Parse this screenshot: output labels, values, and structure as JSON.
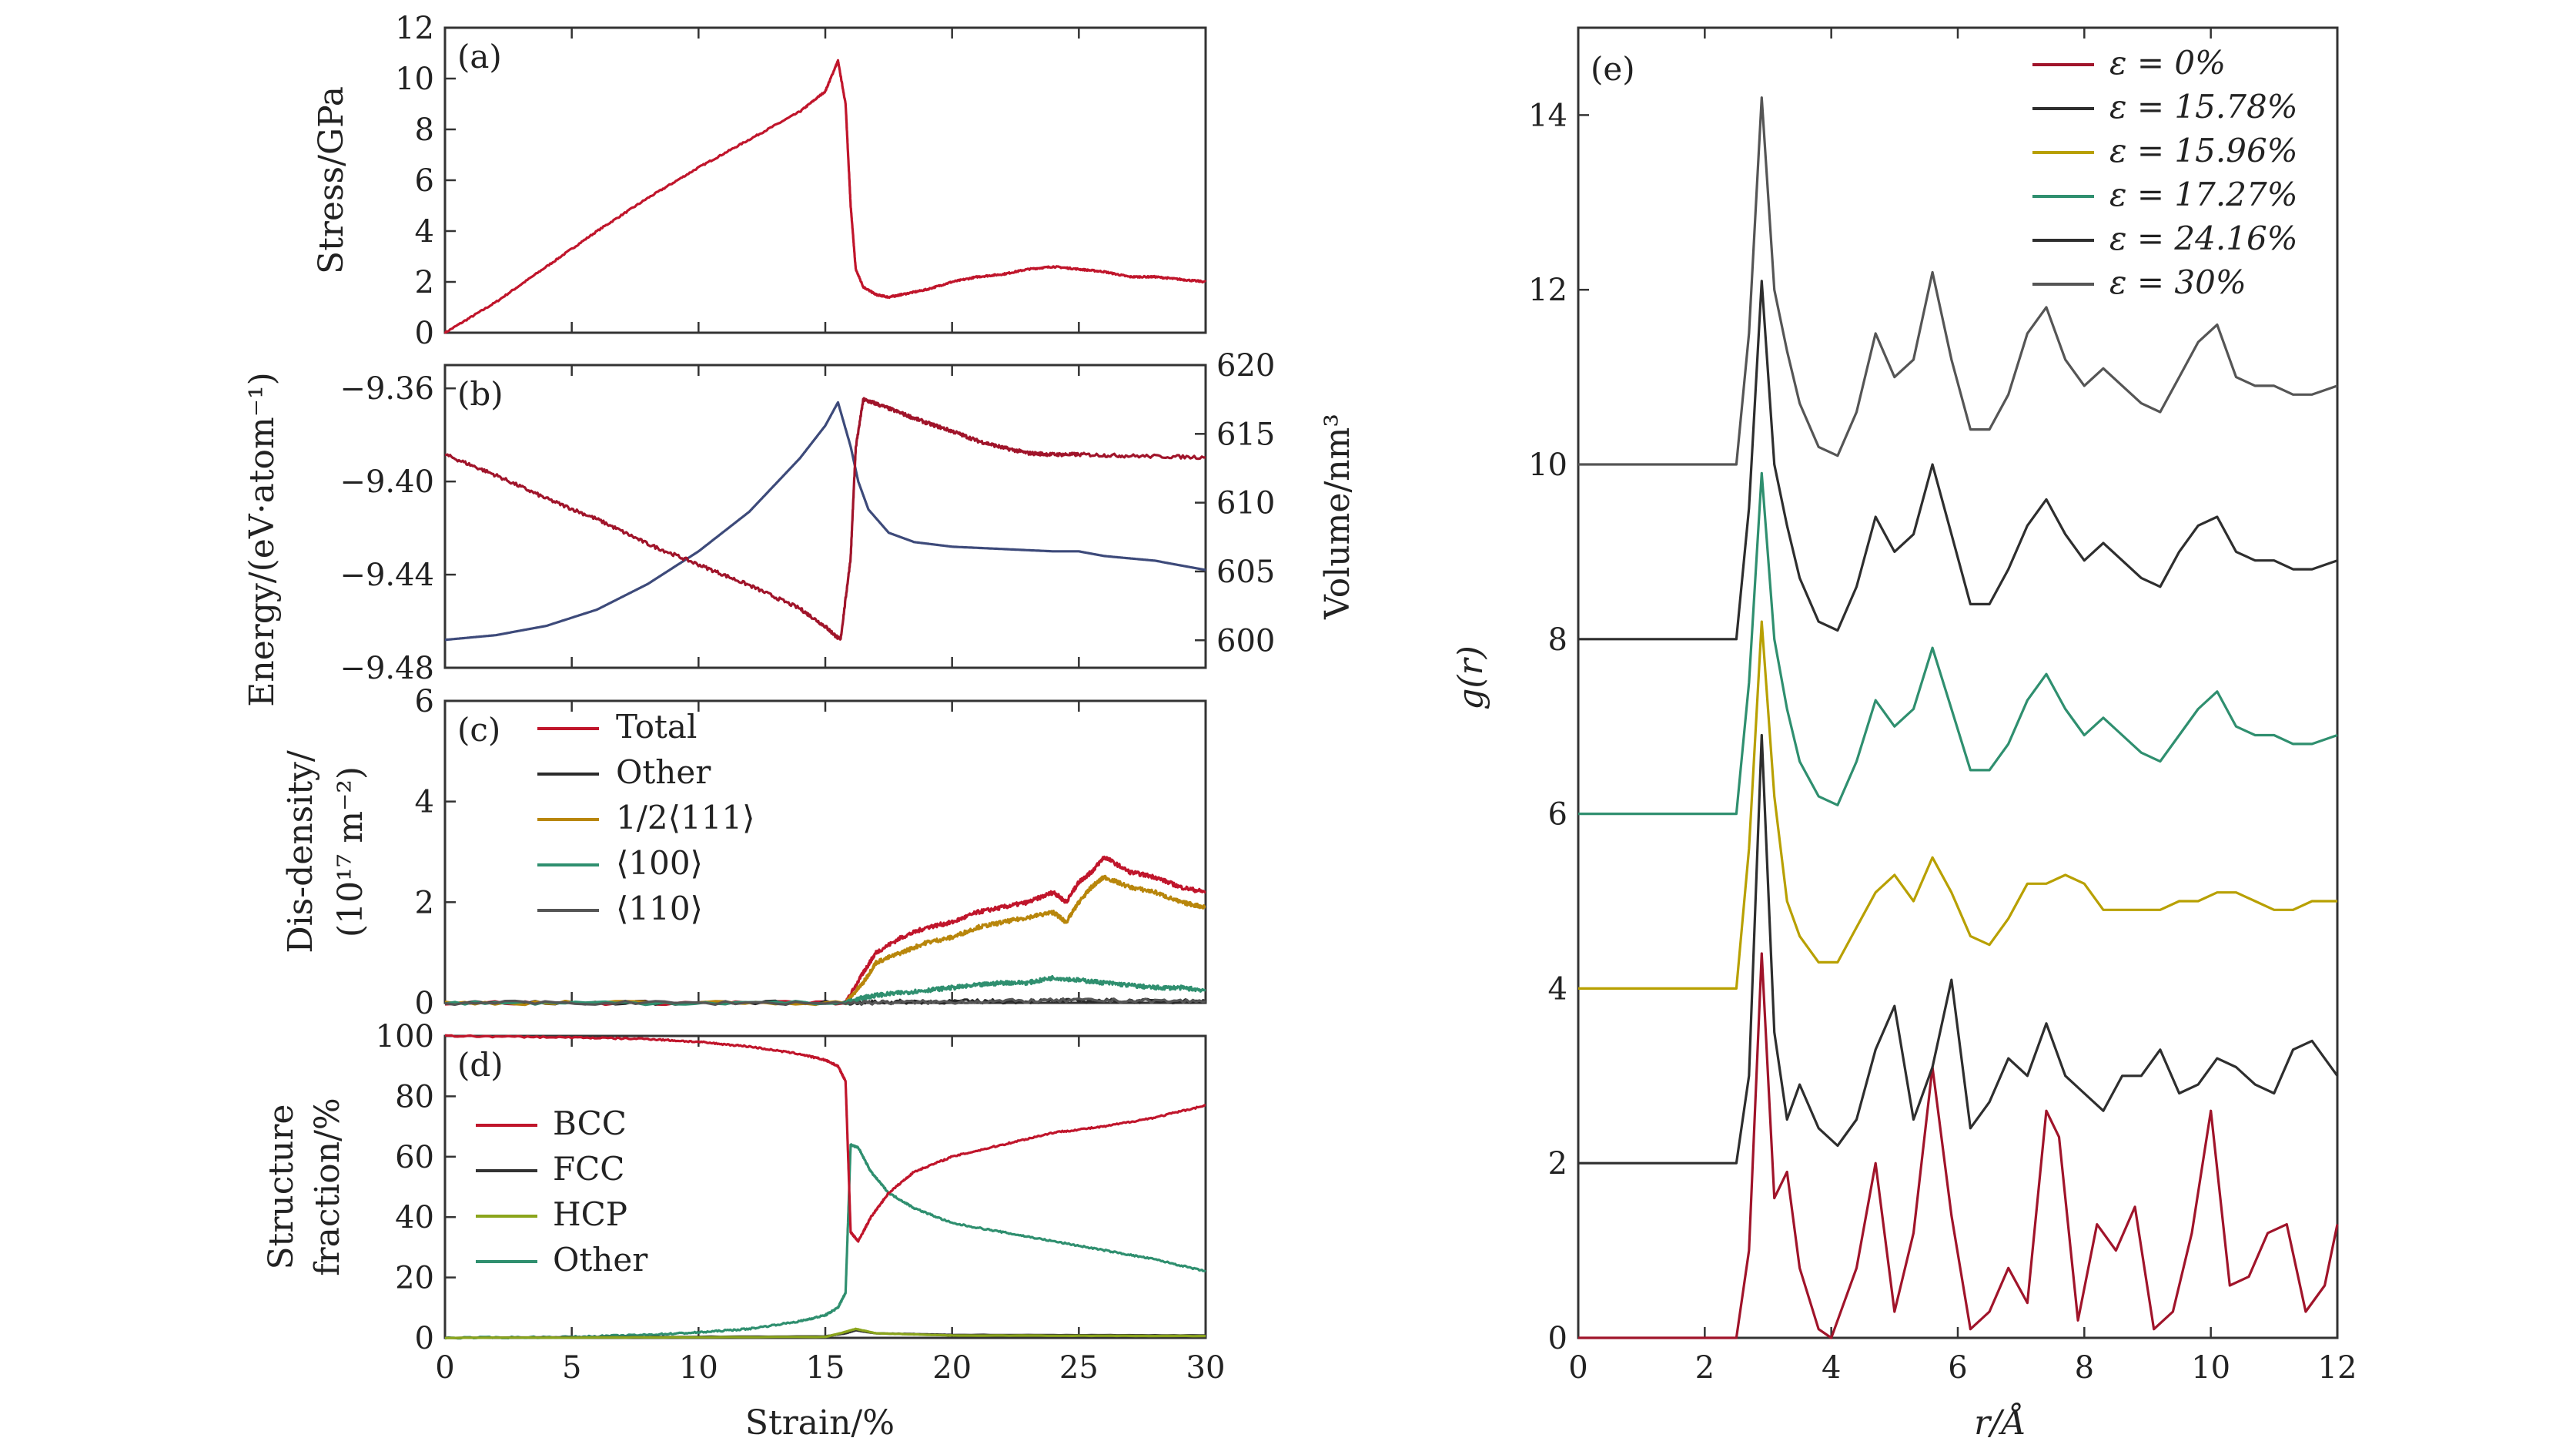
{
  "figure": {
    "shared_xlabel": "Strain/%",
    "right_xlabel": "r/Å",
    "right_ylabel": "g(r)"
  },
  "chart_data": [
    {
      "panel": "(a)",
      "type": "line",
      "ylabel": "Stress/GPa",
      "xlim": [
        0,
        30
      ],
      "ylim": [
        0,
        12
      ],
      "xticks": [
        0,
        5,
        10,
        15,
        20,
        25,
        30
      ],
      "yticks": [
        0,
        2,
        4,
        6,
        8,
        10,
        12
      ],
      "series": [
        {
          "color": "#c0152b",
          "x": [
            0,
            2,
            4,
            6,
            8,
            10,
            12,
            14,
            15,
            15.5,
            15.8,
            16,
            16.2,
            16.5,
            17,
            17.5,
            18,
            19,
            20,
            21,
            22,
            23,
            24,
            25,
            26,
            27,
            28,
            29,
            30
          ],
          "y": [
            0,
            1.2,
            2.6,
            4.0,
            5.3,
            6.5,
            7.6,
            8.7,
            9.5,
            10.7,
            9.0,
            5.0,
            2.5,
            1.8,
            1.5,
            1.4,
            1.5,
            1.7,
            2.0,
            2.2,
            2.3,
            2.5,
            2.6,
            2.5,
            2.4,
            2.2,
            2.2,
            2.1,
            2.0
          ]
        }
      ]
    },
    {
      "panel": "(b)",
      "type": "line",
      "ylabel": "Energy/(eV·atom⁻¹)",
      "ylabel_right": "Volume/nm³",
      "xlim": [
        0,
        30
      ],
      "ylim": [
        -9.48,
        -9.35
      ],
      "ylim_right": [
        598,
        620
      ],
      "yticks": [
        "−9.36",
        "−9.40",
        "−9.44",
        "−9.48"
      ],
      "yticks_right": [
        "620",
        "615",
        "610",
        "605",
        "600"
      ],
      "series": [
        {
          "axis": "left",
          "color": "#3d4a7a",
          "x": [
            0,
            2,
            4,
            6,
            8,
            10,
            12,
            14,
            15,
            15.5,
            16,
            16.3,
            16.7,
            17.5,
            18.5,
            20,
            22,
            24,
            25,
            26,
            28,
            30
          ],
          "y": [
            -9.468,
            -9.466,
            -9.462,
            -9.455,
            -9.444,
            -9.43,
            -9.413,
            -9.39,
            -9.376,
            -9.366,
            -9.385,
            -9.4,
            -9.412,
            -9.422,
            -9.426,
            -9.428,
            -9.429,
            -9.43,
            -9.43,
            -9.432,
            -9.434,
            -9.438
          ]
        },
        {
          "axis": "right",
          "color": "#a0142a",
          "x": [
            0,
            2,
            4,
            6,
            8,
            10,
            12,
            14,
            15,
            15.6,
            16.0,
            16.2,
            16.5,
            17,
            18,
            19,
            20,
            21,
            22,
            23,
            24,
            25,
            27,
            30
          ],
          "y": [
            613.5,
            612.0,
            610.3,
            608.8,
            607.0,
            605.5,
            604.0,
            602.3,
            601.0,
            600.0,
            606.0,
            614.0,
            617.5,
            617.2,
            616.5,
            615.8,
            615.2,
            614.5,
            614.0,
            613.6,
            613.5,
            613.5,
            613.4,
            613.3
          ]
        }
      ]
    },
    {
      "panel": "(c)",
      "type": "line",
      "ylabel": "Dis-density/",
      "ylabel2": "(10¹⁷ m⁻²)",
      "xlim": [
        0,
        30
      ],
      "ylim": [
        0,
        6
      ],
      "yticks": [
        0,
        2,
        4,
        6
      ],
      "legend": [
        "Total",
        "Other",
        "1/2⟨111⟩",
        "⟨100⟩",
        "⟨110⟩"
      ],
      "series": [
        {
          "name": "Total",
          "color": "#c0152b",
          "x": [
            0,
            15.8,
            16.5,
            17,
            18,
            19,
            20,
            21,
            22,
            23,
            24,
            24.5,
            25,
            25.5,
            26,
            27,
            28,
            29,
            30
          ],
          "y": [
            0,
            0,
            0.6,
            1.0,
            1.3,
            1.5,
            1.6,
            1.8,
            1.9,
            2.0,
            2.2,
            2.0,
            2.4,
            2.6,
            2.9,
            2.6,
            2.5,
            2.3,
            2.2
          ]
        },
        {
          "name": "Other",
          "color": "#2a2a2a",
          "x": [
            0,
            15.8,
            18,
            22,
            26,
            30
          ],
          "y": [
            0,
            0,
            0.02,
            0.03,
            0.04,
            0.03
          ]
        },
        {
          "name": "1/2⟨111⟩",
          "color": "#b8860b",
          "x": [
            0,
            15.8,
            16.5,
            17,
            18,
            19,
            20,
            21,
            22,
            23,
            24,
            24.5,
            25,
            25.5,
            26,
            27,
            28,
            29,
            30
          ],
          "y": [
            0,
            0,
            0.4,
            0.8,
            1.0,
            1.2,
            1.3,
            1.5,
            1.6,
            1.7,
            1.8,
            1.6,
            2.0,
            2.3,
            2.5,
            2.3,
            2.2,
            2.0,
            1.9
          ]
        },
        {
          "name": "⟨100⟩",
          "color": "#2f8f6f",
          "x": [
            0,
            15.8,
            16.5,
            17,
            18,
            19,
            20,
            21,
            22,
            23,
            24,
            25,
            26,
            27,
            28,
            29,
            30
          ],
          "y": [
            0,
            0,
            0.1,
            0.15,
            0.2,
            0.25,
            0.3,
            0.35,
            0.4,
            0.4,
            0.5,
            0.45,
            0.4,
            0.35,
            0.3,
            0.3,
            0.25
          ]
        },
        {
          "name": "⟨110⟩",
          "color": "#555555",
          "x": [
            0,
            15.8,
            20,
            25,
            30
          ],
          "y": [
            0,
            0,
            0.02,
            0.05,
            0.03
          ]
        }
      ]
    },
    {
      "panel": "(d)",
      "type": "line",
      "ylabel": "Structure",
      "ylabel2": "fraction/%",
      "xlabel": "Strain/%",
      "xlim": [
        0,
        30
      ],
      "ylim": [
        0,
        100
      ],
      "xticks": [
        0,
        5,
        10,
        15,
        20,
        25,
        30
      ],
      "yticks": [
        0,
        20,
        40,
        60,
        80,
        100
      ],
      "legend": [
        "BCC",
        "FCC",
        "HCP",
        "Other"
      ],
      "series": [
        {
          "name": "BCC",
          "color": "#c0152b",
          "x": [
            0,
            5,
            8,
            10,
            12,
            14,
            15,
            15.5,
            15.8,
            16.0,
            16.3,
            16.8,
            17.5,
            18.5,
            20,
            22,
            24,
            26,
            28,
            30
          ],
          "y": [
            100,
            99.5,
            99,
            98,
            96.5,
            94,
            92,
            90,
            85,
            35,
            32,
            40,
            48,
            55,
            60,
            64,
            68,
            70,
            73,
            77
          ]
        },
        {
          "name": "FCC",
          "color": "#333333",
          "x": [
            0,
            15,
            15.8,
            16.2,
            17,
            20,
            30
          ],
          "y": [
            0,
            0.5,
            1.5,
            2.5,
            1.5,
            1.0,
            0.8
          ]
        },
        {
          "name": "HCP",
          "color": "#8ba51c",
          "x": [
            0,
            15,
            15.8,
            16.2,
            17,
            20,
            30
          ],
          "y": [
            0,
            0.3,
            2.0,
            3.0,
            1.5,
            0.8,
            0.6
          ]
        },
        {
          "name": "Other",
          "color": "#2f8f6f",
          "x": [
            0,
            5,
            8,
            10,
            12,
            14,
            15,
            15.5,
            15.8,
            16.0,
            16.3,
            16.8,
            17.5,
            18.5,
            20,
            22,
            24,
            26,
            28,
            30
          ],
          "y": [
            0,
            0.3,
            1,
            1.8,
            3,
            5.5,
            7.5,
            10,
            15,
            64,
            63,
            55,
            48,
            43,
            38,
            35,
            32,
            29,
            26,
            22
          ]
        }
      ]
    },
    {
      "panel": "(e)",
      "type": "line",
      "xlabel": "r/Å",
      "ylabel": "g(r)",
      "xlim": [
        0,
        12
      ],
      "ylim": [
        0,
        15
      ],
      "xticks": [
        0,
        2,
        4,
        6,
        8,
        10,
        12
      ],
      "yticks": [
        0,
        2,
        4,
        6,
        8,
        10,
        12,
        14
      ],
      "legend": [
        "ε = 0%",
        "ε = 15.78%",
        "ε = 15.96%",
        "ε = 17.27%",
        "ε = 24.16%",
        "ε = 30%"
      ],
      "series": [
        {
          "name": "ε = 0%",
          "color": "#a0142a",
          "x": [
            0,
            2.5,
            2.7,
            2.9,
            3.1,
            3.3,
            3.5,
            3.8,
            4.0,
            4.4,
            4.7,
            5.0,
            5.3,
            5.6,
            5.9,
            6.2,
            6.5,
            6.8,
            7.1,
            7.4,
            7.6,
            7.9,
            8.2,
            8.5,
            8.8,
            9.1,
            9.4,
            9.7,
            10.0,
            10.3,
            10.6,
            10.9,
            11.2,
            11.5,
            11.8,
            12.0
          ],
          "y": [
            0,
            0,
            1.0,
            4.4,
            1.6,
            1.9,
            0.8,
            0.1,
            0,
            0.8,
            2.0,
            0.3,
            1.2,
            3.1,
            1.4,
            0.1,
            0.3,
            0.8,
            0.4,
            2.6,
            2.3,
            0.2,
            1.3,
            1.0,
            1.5,
            0.1,
            0.3,
            1.2,
            2.6,
            0.6,
            0.7,
            1.2,
            1.3,
            0.3,
            0.6,
            1.3
          ]
        },
        {
          "name": "ε = 15.78%",
          "color": "#2e2e2e",
          "x": [
            0,
            2.5,
            2.7,
            2.9,
            3.1,
            3.3,
            3.5,
            3.8,
            4.1,
            4.4,
            4.7,
            5.0,
            5.3,
            5.6,
            5.9,
            6.2,
            6.5,
            6.8,
            7.1,
            7.4,
            7.7,
            8.0,
            8.3,
            8.6,
            8.9,
            9.2,
            9.5,
            9.8,
            10.1,
            10.4,
            10.7,
            11.0,
            11.3,
            11.6,
            12.0
          ],
          "y": [
            2,
            2,
            3.0,
            6.9,
            3.5,
            2.5,
            2.9,
            2.4,
            2.2,
            2.5,
            3.3,
            3.8,
            2.5,
            3.1,
            4.1,
            2.4,
            2.7,
            3.2,
            3.0,
            3.6,
            3.0,
            2.8,
            2.6,
            3.0,
            3.0,
            3.3,
            2.8,
            2.9,
            3.2,
            3.1,
            2.9,
            2.8,
            3.3,
            3.4,
            3.0
          ]
        },
        {
          "name": "ε = 15.96%",
          "color": "#b8a000",
          "x": [
            0,
            2.5,
            2.7,
            2.9,
            3.1,
            3.3,
            3.5,
            3.8,
            4.1,
            4.4,
            4.7,
            5.0,
            5.3,
            5.6,
            5.9,
            6.2,
            6.5,
            6.8,
            7.1,
            7.4,
            7.7,
            8.0,
            8.3,
            8.6,
            8.9,
            9.2,
            9.5,
            9.8,
            10.1,
            10.4,
            10.7,
            11.0,
            11.3,
            11.6,
            12.0
          ],
          "y": [
            4,
            4,
            5.6,
            8.2,
            6.2,
            5.0,
            4.6,
            4.3,
            4.3,
            4.7,
            5.1,
            5.3,
            5.0,
            5.5,
            5.1,
            4.6,
            4.5,
            4.8,
            5.2,
            5.2,
            5.3,
            5.2,
            4.9,
            4.9,
            4.9,
            4.9,
            5.0,
            5.0,
            5.1,
            5.1,
            5.0,
            4.9,
            4.9,
            5.0,
            5.0
          ]
        },
        {
          "name": "ε = 17.27%",
          "color": "#2f8f6f",
          "x": [
            0,
            2.5,
            2.7,
            2.9,
            3.1,
            3.3,
            3.5,
            3.8,
            4.1,
            4.4,
            4.7,
            5.0,
            5.3,
            5.6,
            5.9,
            6.2,
            6.5,
            6.8,
            7.1,
            7.4,
            7.7,
            8.0,
            8.3,
            8.6,
            8.9,
            9.2,
            9.5,
            9.8,
            10.1,
            10.4,
            10.7,
            11.0,
            11.3,
            11.6,
            12.0
          ],
          "y": [
            6,
            6,
            7.5,
            9.9,
            8.0,
            7.2,
            6.6,
            6.2,
            6.1,
            6.6,
            7.3,
            7.0,
            7.2,
            7.9,
            7.2,
            6.5,
            6.5,
            6.8,
            7.3,
            7.6,
            7.2,
            6.9,
            7.1,
            6.9,
            6.7,
            6.6,
            6.9,
            7.2,
            7.4,
            7.0,
            6.9,
            6.9,
            6.8,
            6.8,
            6.9
          ]
        },
        {
          "name": "ε = 24.16%",
          "color": "#2e2e2e",
          "x": [
            0,
            2.5,
            2.7,
            2.9,
            3.1,
            3.3,
            3.5,
            3.8,
            4.1,
            4.4,
            4.7,
            5.0,
            5.3,
            5.6,
            5.9,
            6.2,
            6.5,
            6.8,
            7.1,
            7.4,
            7.7,
            8.0,
            8.3,
            8.6,
            8.9,
            9.2,
            9.5,
            9.8,
            10.1,
            10.4,
            10.7,
            11.0,
            11.3,
            11.6,
            12.0
          ],
          "y": [
            8,
            8,
            9.5,
            12.1,
            10.0,
            9.3,
            8.7,
            8.2,
            8.1,
            8.6,
            9.4,
            9.0,
            9.2,
            10.0,
            9.2,
            8.4,
            8.4,
            8.8,
            9.3,
            9.6,
            9.2,
            8.9,
            9.1,
            8.9,
            8.7,
            8.6,
            9.0,
            9.3,
            9.4,
            9.0,
            8.9,
            8.9,
            8.8,
            8.8,
            8.9
          ]
        },
        {
          "name": "ε = 30%",
          "color": "#555555",
          "x": [
            0,
            2.5,
            2.7,
            2.9,
            3.1,
            3.3,
            3.5,
            3.8,
            4.1,
            4.4,
            4.7,
            5.0,
            5.3,
            5.6,
            5.9,
            6.2,
            6.5,
            6.8,
            7.1,
            7.4,
            7.7,
            8.0,
            8.3,
            8.6,
            8.9,
            9.2,
            9.5,
            9.8,
            10.1,
            10.4,
            10.7,
            11.0,
            11.3,
            11.6,
            12.0
          ],
          "y": [
            10,
            10,
            11.5,
            14.2,
            12.0,
            11.3,
            10.7,
            10.2,
            10.1,
            10.6,
            11.5,
            11.0,
            11.2,
            12.2,
            11.2,
            10.4,
            10.4,
            10.8,
            11.5,
            11.8,
            11.2,
            10.9,
            11.1,
            10.9,
            10.7,
            10.6,
            11.0,
            11.4,
            11.6,
            11.0,
            10.9,
            10.9,
            10.8,
            10.8,
            10.9
          ]
        }
      ]
    }
  ]
}
